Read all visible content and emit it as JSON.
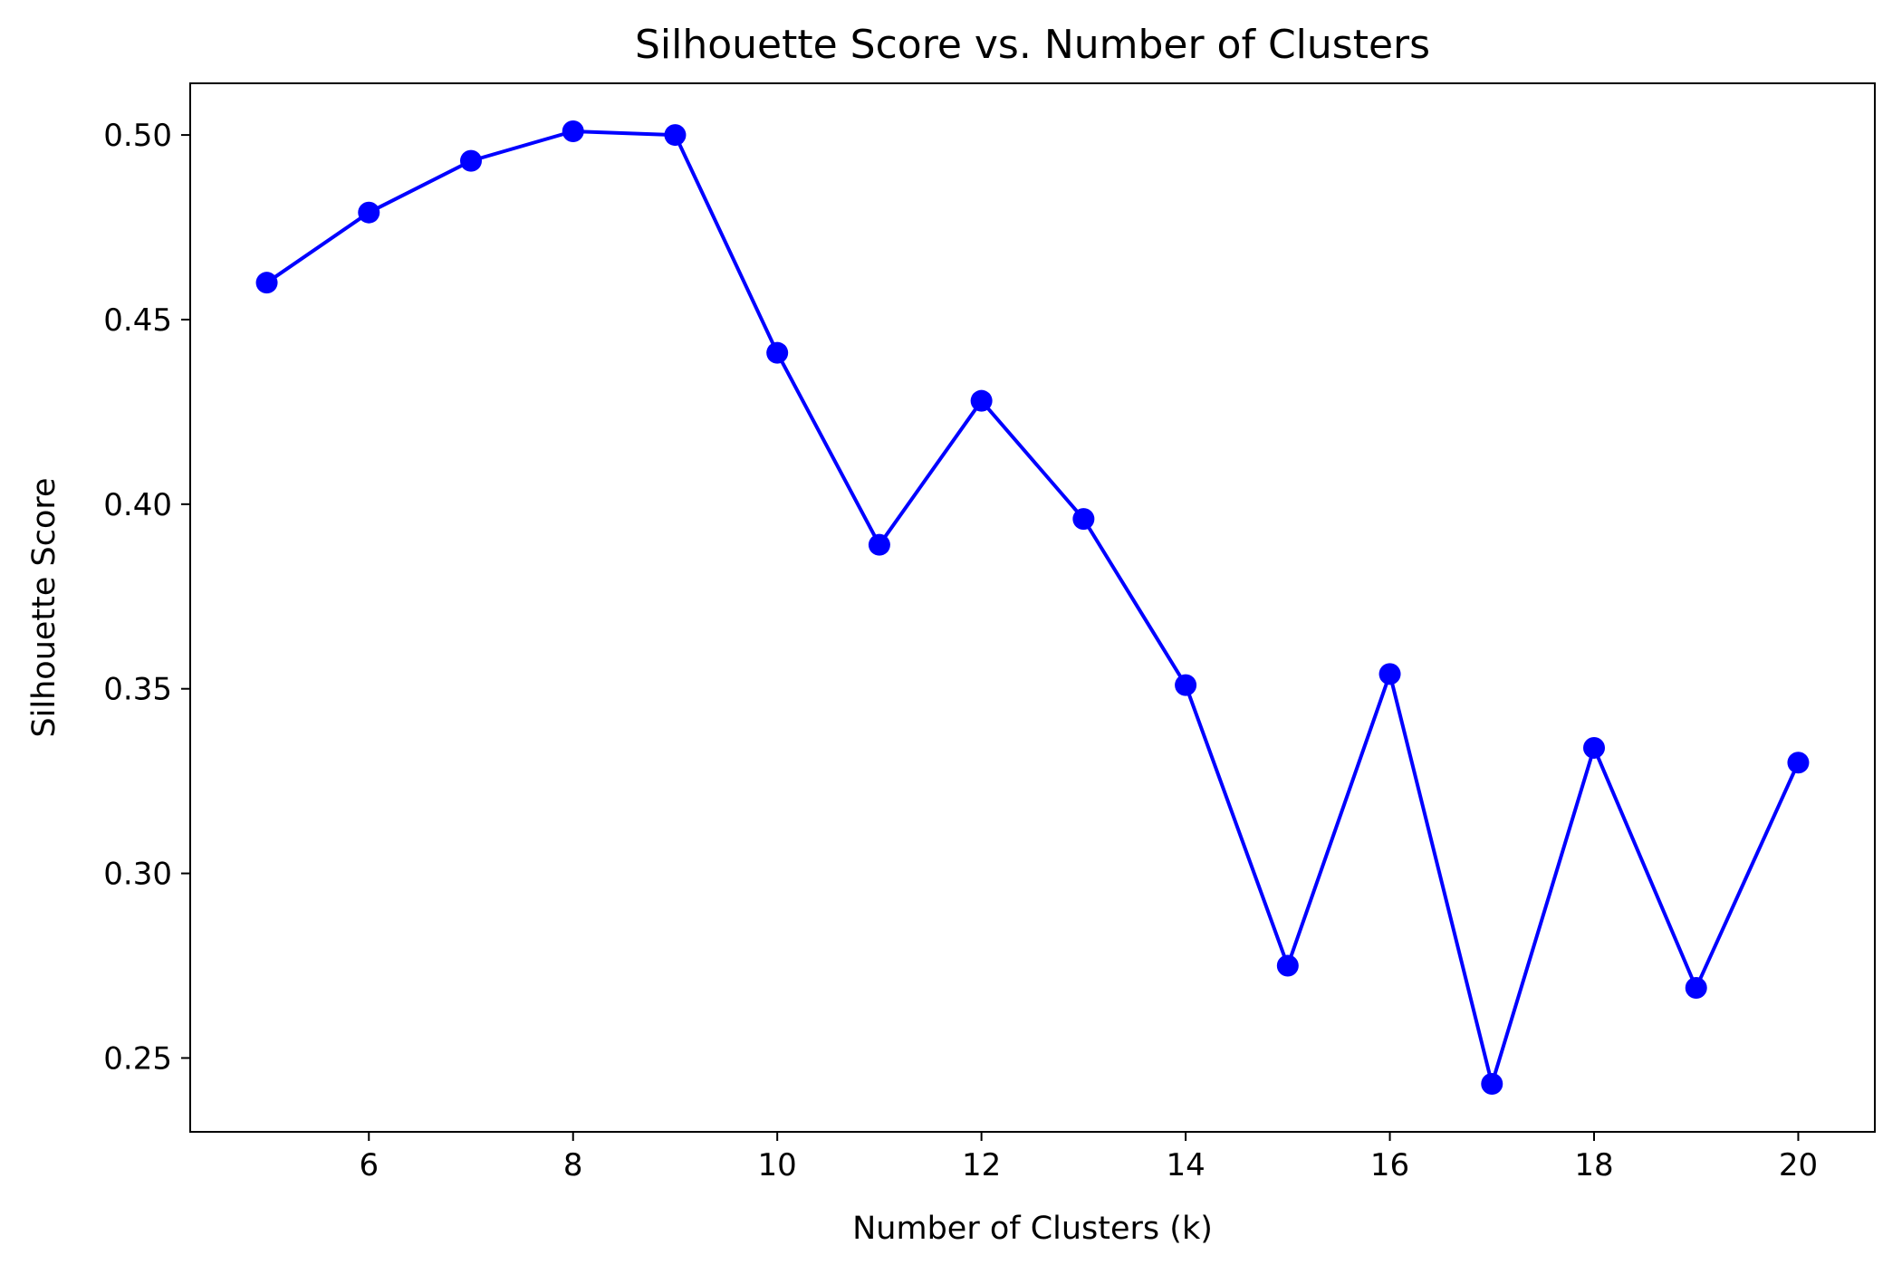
{
  "chart_data": {
    "type": "line",
    "title": "Silhouette Score vs. Number of Clusters",
    "xlabel": "Number of Clusters (k)",
    "ylabel": "Silhouette Score",
    "xlim": [
      4.25,
      20.75
    ],
    "ylim": [
      0.23,
      0.514
    ],
    "x_ticks": [
      6,
      8,
      10,
      12,
      14,
      16,
      18,
      20
    ],
    "y_ticks": [
      0.25,
      0.3,
      0.35,
      0.4,
      0.45,
      0.5
    ],
    "y_tick_labels": [
      "0.25",
      "0.30",
      "0.35",
      "0.40",
      "0.45",
      "0.50"
    ],
    "x_tick_labels": [
      "6",
      "8",
      "10",
      "12",
      "14",
      "16",
      "18",
      "20"
    ],
    "grid": false,
    "legend": "none",
    "series": [
      {
        "color": "#0000ff",
        "marker": "circle",
        "x": [
          5,
          6,
          7,
          8,
          9,
          10,
          11,
          12,
          13,
          14,
          15,
          16,
          17,
          18,
          19,
          20
        ],
        "values": [
          0.46,
          0.479,
          0.493,
          0.501,
          0.5,
          0.441,
          0.389,
          0.428,
          0.396,
          0.351,
          0.275,
          0.354,
          0.243,
          0.334,
          0.269,
          0.33
        ]
      }
    ]
  }
}
